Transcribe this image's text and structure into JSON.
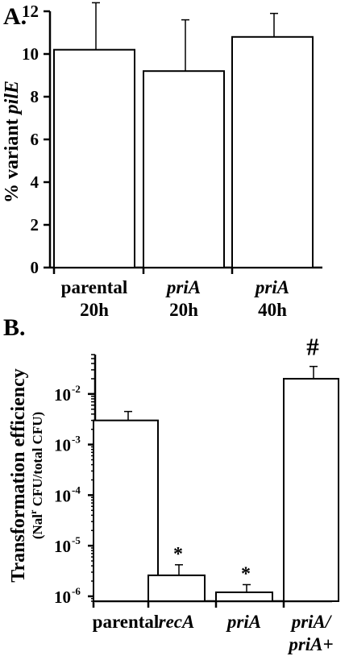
{
  "chart_data": [
    {
      "panel_label": "A.",
      "type": "bar",
      "ylabel_prefix": "% variant ",
      "ylabel_italic": "pilE",
      "categories": [
        {
          "line1": "parental",
          "line1_italic": false,
          "line2": "20h",
          "line2_italic": false
        },
        {
          "line1": "priA",
          "line1_italic": true,
          "line2": "20h",
          "line2_italic": false
        },
        {
          "line1": "priA",
          "line1_italic": true,
          "line2": "40h",
          "line2_italic": false
        }
      ],
      "values": [
        10.2,
        9.2,
        10.8
      ],
      "errors": [
        2.2,
        2.4,
        1.1
      ],
      "ylim": [
        0,
        12
      ],
      "yticks": [
        0,
        2,
        4,
        6,
        8,
        10,
        12
      ],
      "ytick_labels": [
        "0",
        "2",
        "4",
        "6",
        "8",
        "10",
        "12"
      ],
      "yscale": "linear"
    },
    {
      "panel_label": "B.",
      "type": "bar",
      "ylabel_line1": "Transformation efficiency",
      "ylabel_line2_pre": "(Nal",
      "ylabel_line2_sup": "r",
      "ylabel_line2_post": " CFU/total CFU)",
      "categories": [
        {
          "line1": "parental",
          "line1_italic": false,
          "line2": "",
          "line2_italic": false,
          "marker": ""
        },
        {
          "line1": "recA",
          "line1_italic": true,
          "line2": "",
          "line2_italic": false,
          "marker": "*"
        },
        {
          "line1": "priA",
          "line1_italic": true,
          "line2": "",
          "line2_italic": false,
          "marker": "*"
        },
        {
          "line1": "priA/",
          "line1_italic": true,
          "line2": "priA+",
          "line2_italic": true,
          "marker": "#"
        }
      ],
      "values": [
        0.003,
        2.6e-06,
        1.2e-06,
        0.02
      ],
      "error_tops": [
        0.0045,
        4.2e-06,
        1.7e-06,
        0.035
      ],
      "yscale": "log",
      "ylim": [
        8e-07,
        0.06
      ],
      "yticks": [
        1e-06,
        1e-05,
        0.0001,
        0.001,
        0.01
      ],
      "ytick_base": "10",
      "ytick_exponents": [
        "-6",
        "-5",
        "-4",
        "-3",
        "-2"
      ]
    }
  ]
}
